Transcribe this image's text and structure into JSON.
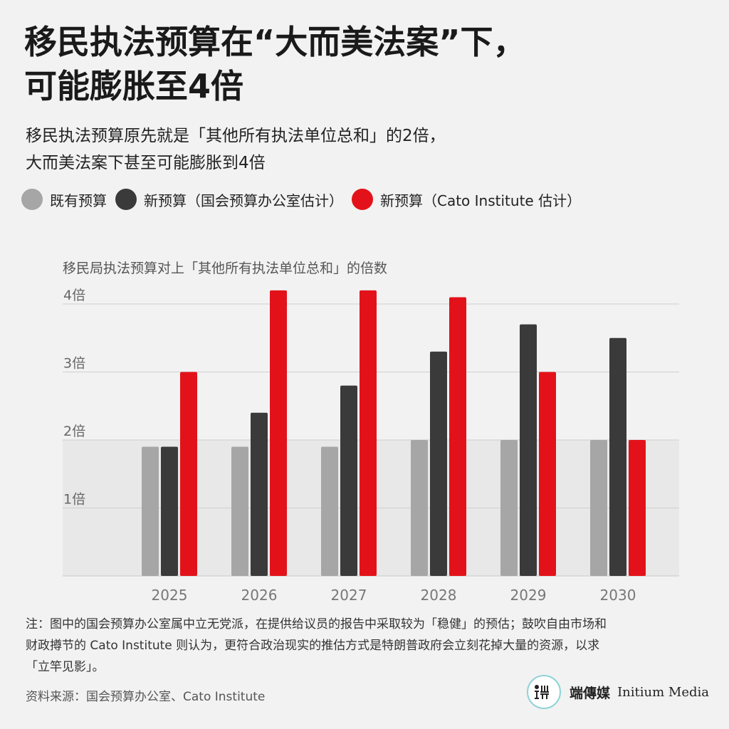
{
  "header": {
    "title_line1": "移民执法预算在“大而美法案”下，",
    "title_line2": "可能膨胀至4倍",
    "subtitle_line1": "移民执法预算原先就是「其他所有执法单位总和」的2倍，",
    "subtitle_line2": "大而美法案下甚至可能膨胀到4倍"
  },
  "legend": [
    {
      "label": "既有预算",
      "color": "#a6a6a6"
    },
    {
      "label": "新预算（国会预算办公室估计）",
      "color": "#3a3a3a"
    },
    {
      "label": "新预算（Cato Institute 估计）",
      "color": "#e3121a"
    }
  ],
  "chart_data": {
    "type": "bar",
    "title": "移民局执法预算对上「其他所有执法单位总和」的倍数",
    "categories": [
      "2025",
      "2026",
      "2027",
      "2028",
      "2029",
      "2030"
    ],
    "series": [
      {
        "name": "既有预算",
        "color": "#a6a6a6",
        "values": [
          1.9,
          1.9,
          1.9,
          2.0,
          2.0,
          2.0
        ]
      },
      {
        "name": "新预算（国会预算办公室估计）",
        "color": "#3a3a3a",
        "values": [
          1.9,
          2.4,
          2.8,
          3.3,
          3.7,
          3.5
        ]
      },
      {
        "name": "新预算（Cato Institute 估计）",
        "color": "#e3121a",
        "values": [
          3.0,
          4.2,
          4.2,
          4.1,
          3.0,
          2.0
        ]
      }
    ],
    "yticks": [
      {
        "value": 1,
        "label": "1倍"
      },
      {
        "value": 2,
        "label": "2倍"
      },
      {
        "value": 3,
        "label": "3倍"
      },
      {
        "value": 4,
        "label": "4倍"
      }
    ],
    "ylim": [
      0,
      4.2
    ],
    "grid": true,
    "shaded_band": [
      0,
      2
    ]
  },
  "footer": {
    "note_line1": "注：图中的国会预算办公室属中立无党派，在提供给议员的报告中采取较为「稳健」的预估；鼓吹自由市场和",
    "note_line2": "财政撙节的 Cato Institute 则认为，更符合政治现实的推估方式是特朗普政府会立刻花掉大量的资源，以求",
    "note_line3": "「立竿见影」。",
    "source": "资料来源：国会预算办公室、Cato Institute",
    "brand_cn": "端傳媒",
    "brand_en": "Initium Media"
  }
}
